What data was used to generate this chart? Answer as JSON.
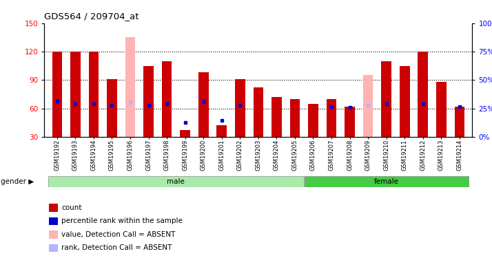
{
  "title": "GDS564 / 209704_at",
  "samples": [
    "GSM19192",
    "GSM19193",
    "GSM19194",
    "GSM19195",
    "GSM19196",
    "GSM19197",
    "GSM19198",
    "GSM19199",
    "GSM19200",
    "GSM19201",
    "GSM19202",
    "GSM19203",
    "GSM19204",
    "GSM19205",
    "GSM19206",
    "GSM19207",
    "GSM19208",
    "GSM19209",
    "GSM19210",
    "GSM19211",
    "GSM19212",
    "GSM19213",
    "GSM19214"
  ],
  "count_values": [
    120,
    120,
    120,
    91,
    135,
    105,
    110,
    37,
    98,
    42,
    91,
    82,
    72,
    70,
    65,
    70,
    62,
    95,
    110,
    105,
    120,
    88,
    62
  ],
  "percentile_values": [
    68,
    65,
    65,
    63,
    67,
    63,
    65,
    45,
    67,
    47,
    63,
    null,
    null,
    null,
    null,
    62,
    61,
    63,
    65,
    null,
    65,
    null,
    62
  ],
  "absent_flags": [
    false,
    false,
    false,
    false,
    true,
    false,
    false,
    false,
    false,
    false,
    false,
    false,
    false,
    false,
    false,
    false,
    false,
    true,
    false,
    false,
    false,
    false,
    false
  ],
  "gender_groups": [
    {
      "label": "male",
      "start": 0,
      "end": 13
    },
    {
      "label": "female",
      "start": 14,
      "end": 22
    }
  ],
  "ylim_left": [
    30,
    150
  ],
  "ylim_right": [
    0,
    100
  ],
  "yticks_left": [
    30,
    60,
    90,
    120,
    150
  ],
  "yticks_right": [
    0,
    25,
    50,
    75,
    100
  ],
  "bar_color_normal": "#cc0000",
  "bar_color_absent": "#ffb3b3",
  "dot_color_normal": "#0000cc",
  "dot_color_absent": "#b3b3ff",
  "bar_width": 0.55,
  "background_color": "#ffffff",
  "plot_bg_color": "#ffffff",
  "gender_bar_color_male": "#aaeaaa",
  "gender_bar_color_female": "#44cc44",
  "grid_lines": [
    60,
    90,
    120
  ],
  "legend_items": [
    {
      "label": "count",
      "color": "#cc0000"
    },
    {
      "label": "percentile rank within the sample",
      "color": "#0000cc"
    },
    {
      "label": "value, Detection Call = ABSENT",
      "color": "#ffb3b3"
    },
    {
      "label": "rank, Detection Call = ABSENT",
      "color": "#b3b3ff"
    }
  ]
}
